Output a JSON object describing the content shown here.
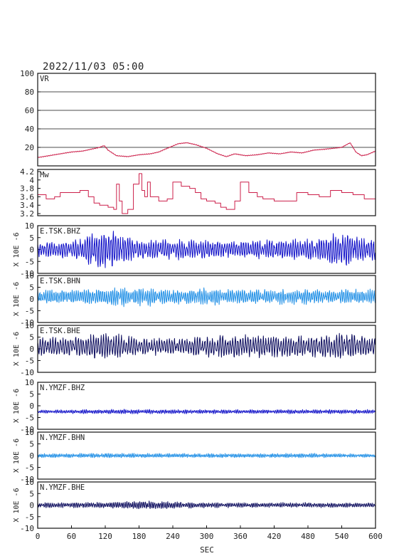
{
  "header": {
    "datetime": "2022/11/03 05:00"
  },
  "chart_data": {
    "type": "line",
    "x_label": "SEC",
    "x_ticks": [
      0,
      60,
      120,
      180,
      240,
      300,
      360,
      420,
      480,
      540,
      600
    ],
    "x_range": [
      0,
      600
    ],
    "y_unit_label": "X 10E -6",
    "panels": [
      {
        "id": "vr",
        "label": "VR",
        "ylim": [
          0,
          100
        ],
        "yticks": [
          20,
          40,
          60,
          80,
          100
        ],
        "gridlines": [
          20,
          40,
          60,
          80
        ],
        "color": "#cc1f4a",
        "style": "smooth",
        "x": [
          0,
          20,
          40,
          60,
          80,
          95,
          110,
          118,
          125,
          140,
          160,
          180,
          200,
          215,
          230,
          250,
          265,
          280,
          300,
          320,
          335,
          350,
          370,
          390,
          410,
          430,
          450,
          470,
          490,
          510,
          540,
          555,
          565,
          575,
          585,
          600
        ],
        "values": [
          9,
          11,
          13,
          15,
          16,
          18,
          20,
          22,
          17,
          11,
          10,
          12,
          13,
          15,
          19,
          24,
          25,
          23,
          19,
          13,
          10,
          13,
          11,
          12,
          14,
          13,
          15,
          14,
          17,
          18,
          20,
          25,
          15,
          11,
          12,
          16
        ]
      },
      {
        "id": "mw",
        "label": "Mw",
        "ylim": [
          3.15,
          4.25
        ],
        "yticks": [
          3.2,
          3.4,
          3.6,
          3.8,
          4.0,
          4.2
        ],
        "color": "#cc1f4a",
        "style": "step",
        "x": [
          0,
          15,
          30,
          40,
          60,
          75,
          90,
          100,
          110,
          125,
          135,
          140,
          145,
          150,
          160,
          170,
          180,
          185,
          190,
          195,
          200,
          215,
          230,
          240,
          255,
          270,
          280,
          290,
          300,
          315,
          325,
          335,
          350,
          360,
          375,
          390,
          400,
          420,
          440,
          460,
          480,
          500,
          520,
          540,
          560,
          580,
          600
        ],
        "values": [
          3.65,
          3.55,
          3.6,
          3.7,
          3.7,
          3.75,
          3.6,
          3.45,
          3.4,
          3.35,
          3.3,
          3.9,
          3.5,
          3.2,
          3.3,
          3.9,
          4.15,
          3.75,
          3.6,
          3.95,
          3.6,
          3.5,
          3.55,
          3.95,
          3.85,
          3.8,
          3.7,
          3.55,
          3.5,
          3.45,
          3.35,
          3.3,
          3.5,
          3.95,
          3.7,
          3.6,
          3.55,
          3.5,
          3.5,
          3.7,
          3.65,
          3.6,
          3.75,
          3.7,
          3.65,
          3.55,
          3.8
        ]
      },
      {
        "id": "tsk-bhz",
        "label": "E.TSK.BHZ",
        "ylim": [
          -10,
          10
        ],
        "yticks": [
          -10,
          -5,
          0,
          5,
          10
        ],
        "color": "#1010c8",
        "style": "wave",
        "baseline": 0,
        "amplitude_env_x": [
          0,
          60,
          90,
          120,
          150,
          180,
          240,
          300,
          360,
          420,
          480,
          540,
          580,
          600
        ],
        "amplitude_env": [
          2.5,
          3,
          5,
          7.5,
          5,
          3.5,
          3.5,
          3,
          3,
          3.5,
          3.5,
          6,
          4,
          3.5
        ],
        "period": 4.2,
        "seed": 11
      },
      {
        "id": "tsk-bhn",
        "label": "E.TSK.BHN",
        "ylim": [
          -10,
          10
        ],
        "yticks": [
          -10,
          -5,
          0,
          5,
          10
        ],
        "color": "#1f8fe6",
        "style": "wave",
        "baseline": 1,
        "amplitude_env_x": [
          0,
          60,
          120,
          180,
          240,
          300,
          360,
          420,
          480,
          540,
          600
        ],
        "amplitude_env": [
          2.5,
          2.5,
          3,
          3.5,
          2.5,
          3,
          2.5,
          2.5,
          2.5,
          2.5,
          2.5
        ],
        "period": 3.6,
        "seed": 23
      },
      {
        "id": "tsk-bhe",
        "label": "E.TSK.BHE",
        "ylim": [
          -10,
          10
        ],
        "yticks": [
          -10,
          -5,
          0,
          5,
          10
        ],
        "color": "#0a0a5c",
        "style": "wave",
        "baseline": 1,
        "amplitude_env_x": [
          0,
          60,
          120,
          180,
          240,
          300,
          360,
          420,
          480,
          540,
          600
        ],
        "amplitude_env": [
          3,
          3.5,
          5,
          3,
          3,
          3.5,
          4,
          4,
          3.5,
          5,
          3
        ],
        "period": 4.5,
        "seed": 37
      },
      {
        "id": "ymzf-bhz",
        "label": "N.YMZF.BHZ",
        "ylim": [
          -10,
          10
        ],
        "yticks": [
          -10,
          -5,
          0,
          5,
          10
        ],
        "color": "#1010c8",
        "style": "wave",
        "baseline": -2.5,
        "amplitude_env_x": [
          0,
          120,
          300,
          480,
          600
        ],
        "amplitude_env": [
          0.6,
          0.8,
          0.7,
          0.7,
          0.7
        ],
        "period": 3.2,
        "seed": 41
      },
      {
        "id": "ymzf-bhn",
        "label": "N.YMZF.BHN",
        "ylim": [
          -10,
          10
        ],
        "yticks": [
          -10,
          -5,
          0,
          5,
          10
        ],
        "color": "#1f8fe6",
        "style": "wave",
        "baseline": 0,
        "amplitude_env_x": [
          0,
          120,
          300,
          480,
          600
        ],
        "amplitude_env": [
          0.7,
          0.8,
          0.7,
          0.8,
          0.6
        ],
        "period": 3.0,
        "seed": 53
      },
      {
        "id": "ymzf-bhe",
        "label": "N.YMZF.BHE",
        "ylim": [
          -10,
          10
        ],
        "yticks": [
          -10,
          -5,
          0,
          5,
          10
        ],
        "color": "#0a0a5c",
        "style": "wave",
        "baseline": 0,
        "amplitude_env_x": [
          0,
          120,
          180,
          300,
          480,
          600
        ],
        "amplitude_env": [
          0.9,
          1.0,
          1.6,
          0.9,
          0.9,
          0.8
        ],
        "period": 3.3,
        "seed": 67
      }
    ]
  }
}
